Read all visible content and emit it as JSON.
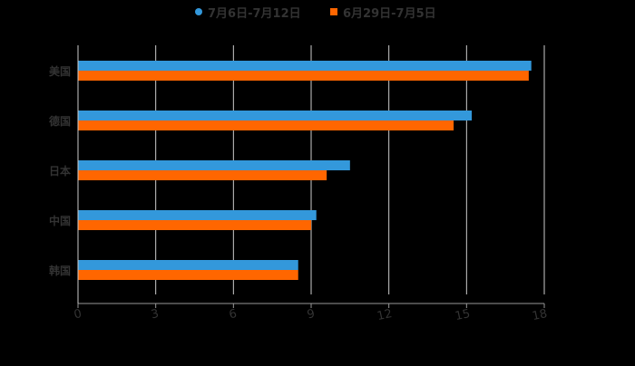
{
  "legend": {
    "items": [
      {
        "label": "7月6日-7月12日",
        "color": "#3398DB",
        "shape": "circle"
      },
      {
        "label": "6月29日-7月5日",
        "color": "#FF6600",
        "shape": "square"
      }
    ]
  },
  "chart_data": {
    "type": "bar",
    "orientation": "horizontal",
    "title": "",
    "xlabel": "",
    "ylabel": "",
    "categories": [
      "美国",
      "德国",
      "日本",
      "中国",
      "韩国"
    ],
    "series": [
      {
        "name": "7月6日-7月12日",
        "color": "#3398DB",
        "values": [
          17.5,
          15.2,
          10.5,
          9.2,
          8.5
        ]
      },
      {
        "name": "6月29日-7月5日",
        "color": "#FF6600",
        "values": [
          17.4,
          14.5,
          9.6,
          9.0,
          8.5
        ]
      }
    ],
    "xlim": [
      0,
      18
    ],
    "x_ticks": [
      "0",
      "3",
      "6",
      "9",
      "12",
      "15",
      "18"
    ],
    "grid": true,
    "legend_position": "top"
  },
  "colors": {
    "background": "#000000",
    "grid": "#cccccc",
    "axis": "#999999",
    "text": "#333333"
  }
}
